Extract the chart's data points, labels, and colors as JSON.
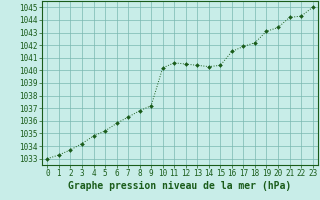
{
  "x": [
    0,
    1,
    2,
    3,
    4,
    5,
    6,
    7,
    8,
    9,
    10,
    11,
    12,
    13,
    14,
    15,
    16,
    17,
    18,
    19,
    20,
    21,
    22,
    23
  ],
  "y": [
    1033.0,
    1033.3,
    1033.7,
    1034.2,
    1034.8,
    1035.2,
    1035.8,
    1036.3,
    1036.8,
    1037.2,
    1040.2,
    1040.6,
    1040.5,
    1040.4,
    1040.3,
    1040.4,
    1041.5,
    1041.9,
    1042.2,
    1043.1,
    1043.4,
    1044.2,
    1044.3,
    1045.0
  ],
  "line_color": "#1a5c1a",
  "marker_color": "#1a5c1a",
  "bg_color": "#c8ede8",
  "grid_color": "#7ab8b0",
  "axis_bg_color": "#c8ede8",
  "border_color": "#1a5c1a",
  "xlabel": "Graphe pression niveau de la mer (hPa)",
  "xlabel_color": "#1a5c1a",
  "tick_color": "#1a5c1a",
  "ylim": [
    1032.5,
    1045.5
  ],
  "xlim": [
    -0.5,
    23.5
  ],
  "yticks": [
    1033,
    1034,
    1035,
    1036,
    1037,
    1038,
    1039,
    1040,
    1041,
    1042,
    1043,
    1044,
    1045
  ],
  "xticks": [
    0,
    1,
    2,
    3,
    4,
    5,
    6,
    7,
    8,
    9,
    10,
    11,
    12,
    13,
    14,
    15,
    16,
    17,
    18,
    19,
    20,
    21,
    22,
    23
  ],
  "tick_fontsize": 5.5,
  "xlabel_fontsize": 7.0
}
